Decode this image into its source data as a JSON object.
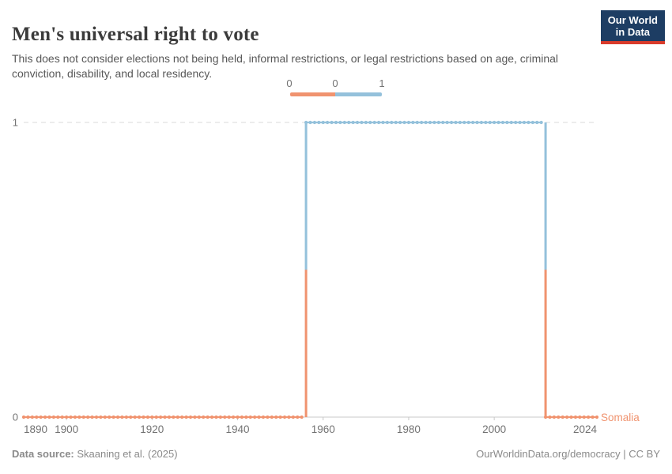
{
  "header": {
    "title": "Men's universal right to vote",
    "subtitle": "This does not consider elections not being held, informal restrictions, or legal restrictions based on age, criminal conviction, disability, and local residency.",
    "logo": {
      "line1": "Our World",
      "line2": "in Data",
      "bg_color": "#1D3D63",
      "accent_color": "#D93B2B"
    }
  },
  "legend": {
    "labels": [
      "0",
      "0",
      "1"
    ],
    "bin_colors": [
      "#F0936F",
      "#94C1DB"
    ]
  },
  "chart_data": {
    "type": "line",
    "title": "Men's universal right to vote",
    "entity": "Somalia",
    "x_range": [
      1890,
      2024
    ],
    "y_range": [
      0,
      1
    ],
    "x_ticks": [
      1890,
      1900,
      1920,
      1940,
      1960,
      1980,
      2000,
      2024
    ],
    "y_ticks": [
      0,
      1
    ],
    "grid": "dashed horizontal gridline at y=1, solid axis at y=0",
    "legend_position": "top-center",
    "series": [
      {
        "name": "Somalia",
        "segments": [
          {
            "start_year": 1890,
            "end_year": 1955,
            "value": 0
          },
          {
            "start_year": 1956,
            "end_year": 2011,
            "value": 1
          },
          {
            "start_year": 2012,
            "end_year": 2024,
            "value": 0
          }
        ]
      }
    ],
    "value_colors": {
      "0": "#F0936F",
      "1": "#94C1DB"
    },
    "axis_color": "#c8c8c8",
    "gridline_color": "#d9d9d9",
    "tick_label_color": "#737373"
  },
  "footer": {
    "source_label": "Data source:",
    "source_value": "Skaaning et al. (2025)",
    "credit": "OurWorldinData.org/democracy | CC BY"
  }
}
